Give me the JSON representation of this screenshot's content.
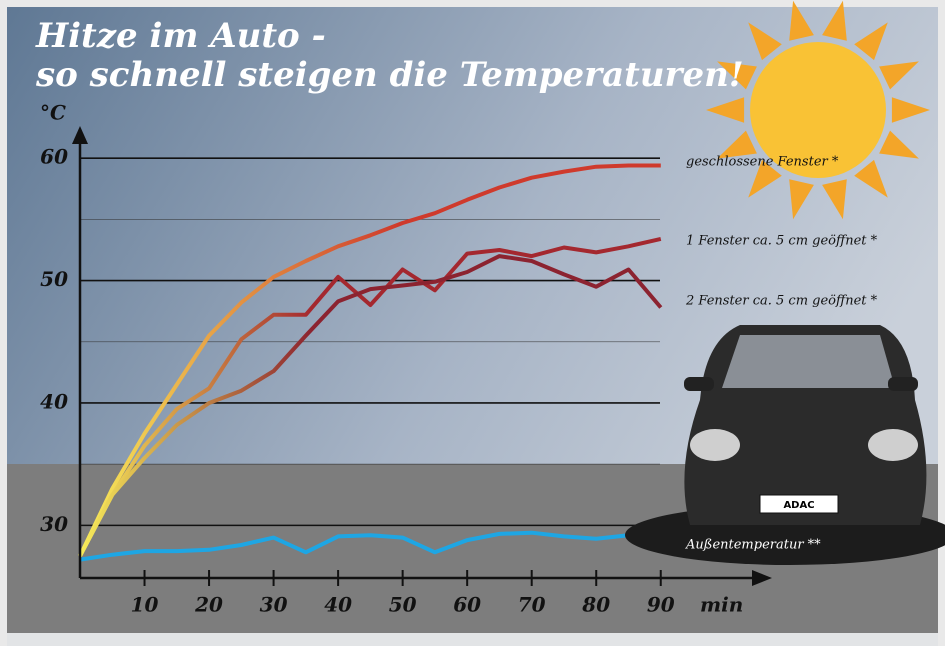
{
  "chart_data": {
    "type": "line",
    "title": "Hitze im Auto -",
    "subtitle": "so schnell steigen die Temperaturen!",
    "y_label": "°C",
    "x_label": "min",
    "x": [
      0,
      5,
      10,
      15,
      20,
      25,
      30,
      35,
      40,
      45,
      50,
      55,
      60,
      65,
      70,
      75,
      80,
      85,
      90
    ],
    "xlim": [
      0,
      106
    ],
    "xticks": [
      10,
      20,
      30,
      40,
      50,
      60,
      70,
      80,
      90
    ],
    "ylim": [
      25.7,
      62.3
    ],
    "yticks": [
      30,
      40,
      50,
      60
    ],
    "minor_yticks": [
      35,
      45,
      55
    ],
    "grid": true,
    "series": [
      {
        "name": "geschlossene Fenster *",
        "color": "#cf3a2c",
        "values": [
          27.5,
          33,
          37.5,
          41.5,
          45.5,
          48.2,
          50.3,
          51.6,
          52.8,
          53.7,
          54.7,
          55.5,
          56.6,
          57.6,
          58.4,
          58.9,
          59.3,
          59.4,
          59.4
        ]
      },
      {
        "name": "1 Fenster ca. 5 cm geöffnet *",
        "color": "#a4282f",
        "values": [
          27.5,
          32.5,
          36.5,
          39.5,
          41.2,
          45.2,
          47.2,
          47.2,
          50.3,
          48.0,
          50.9,
          49.2,
          52.2,
          52.5,
          52.0,
          52.7,
          52.3,
          52.8,
          53.4
        ]
      },
      {
        "name": "2 Fenster ca. 5 cm geöffnet *",
        "color": "#8c2330",
        "values": [
          27.5,
          32.5,
          35.5,
          38.2,
          40.0,
          41.0,
          42.6,
          45.5,
          48.3,
          49.3,
          49.6,
          49.9,
          50.7,
          52.0,
          51.6,
          50.5,
          49.5,
          50.9,
          47.8
        ]
      },
      {
        "name": "Außentemperatur **",
        "color": "#1ea6e4",
        "values": [
          27.2,
          27.6,
          27.9,
          27.9,
          28.0,
          28.4,
          29.0,
          27.8,
          29.1,
          29.2,
          29.0,
          27.8,
          28.8,
          29.3,
          29.4,
          29.1,
          28.9,
          29.2,
          28.7
        ]
      }
    ]
  },
  "plate_label": "ADAC"
}
